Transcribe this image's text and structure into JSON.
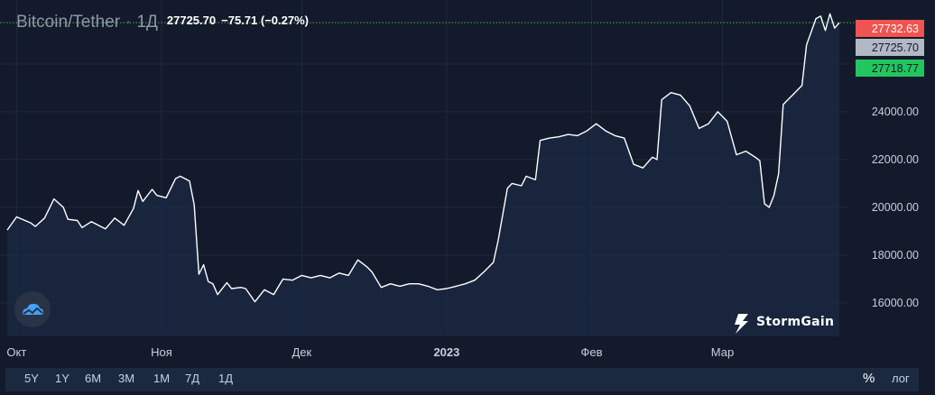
{
  "header": {
    "symbol": "Bitcoin/Tether",
    "separator": "·",
    "timeframe": "1Д",
    "last_price": "27725.70",
    "change": "−75.71 (−0.27%)"
  },
  "price_labels": {
    "high": {
      "text": "27732.63",
      "color": "#f05350"
    },
    "last": {
      "text": "27725.70",
      "color": "#b2b8c4"
    },
    "low": {
      "text": "27718.77",
      "color": "#22c55e"
    }
  },
  "toolbar": {
    "ranges": [
      "5Y",
      "1Y",
      "6M",
      "3M",
      "1M",
      "7Д",
      "1Д"
    ],
    "percent": "%",
    "log": "лог"
  },
  "brand": {
    "name": "StormGain"
  },
  "chart_data": {
    "type": "area",
    "title": "Bitcoin/Tether",
    "xlabel": "",
    "ylabel": "",
    "ylim": [
      14600,
      28600
    ],
    "y_ticks": [
      16000,
      18000,
      20000,
      22000,
      24000,
      26000
    ],
    "y_tick_labels": [
      "16000.00",
      "18000.00",
      "20000.00",
      "22000.00",
      "24000.00",
      "26000.00"
    ],
    "x_ticks": [
      {
        "label": "Окт",
        "date": "2022-10-01"
      },
      {
        "label": "Ноя",
        "date": "2022-11-01"
      },
      {
        "label": "Дек",
        "date": "2022-12-01"
      },
      {
        "label": "2023",
        "date": "2023-01-01"
      },
      {
        "label": "Фев",
        "date": "2023-02-01"
      },
      {
        "label": "Мар",
        "date": "2023-03-01"
      }
    ],
    "grid": true,
    "line_color": "#ffffff",
    "fill_color": "#1b2a44",
    "series": [
      {
        "dates": [
          "2022-09-29",
          "2022-10-01",
          "2022-10-04",
          "2022-10-05",
          "2022-10-07",
          "2022-10-09",
          "2022-10-11",
          "2022-10-12",
          "2022-10-14",
          "2022-10-15",
          "2022-10-17",
          "2022-10-19",
          "2022-10-20",
          "2022-10-22",
          "2022-10-24",
          "2022-10-26",
          "2022-10-27",
          "2022-10-28",
          "2022-10-30",
          "2022-10-31",
          "2022-11-02",
          "2022-11-04",
          "2022-11-05",
          "2022-11-07",
          "2022-11-08",
          "2022-11-09",
          "2022-11-10",
          "2022-11-11",
          "2022-11-12",
          "2022-11-13",
          "2022-11-15",
          "2022-11-16",
          "2022-11-18",
          "2022-11-19",
          "2022-11-21",
          "2022-11-23",
          "2022-11-25",
          "2022-11-27",
          "2022-11-29",
          "2022-12-01",
          "2022-12-03",
          "2022-12-05",
          "2022-12-07",
          "2022-12-09",
          "2022-12-11",
          "2022-12-13",
          "2022-12-15",
          "2022-12-16",
          "2022-12-18",
          "2022-12-20",
          "2022-12-22",
          "2022-12-24",
          "2022-12-26",
          "2022-12-28",
          "2022-12-30",
          "2023-01-01",
          "2023-01-03",
          "2023-01-05",
          "2023-01-07",
          "2023-01-09",
          "2023-01-11",
          "2023-01-12",
          "2023-01-13",
          "2023-01-14",
          "2023-01-15",
          "2023-01-17",
          "2023-01-18",
          "2023-01-20",
          "2023-01-21",
          "2023-01-23",
          "2023-01-25",
          "2023-01-27",
          "2023-01-29",
          "2023-01-31",
          "2023-02-02",
          "2023-02-04",
          "2023-02-06",
          "2023-02-08",
          "2023-02-10",
          "2023-02-12",
          "2023-02-14",
          "2023-02-15",
          "2023-02-16",
          "2023-02-18",
          "2023-02-20",
          "2023-02-22",
          "2023-02-24",
          "2023-02-26",
          "2023-02-28",
          "2023-03-02",
          "2023-03-04",
          "2023-03-06",
          "2023-03-08",
          "2023-03-09",
          "2023-03-10",
          "2023-03-11",
          "2023-03-12",
          "2023-03-13",
          "2023-03-14",
          "2023-03-16",
          "2023-03-18",
          "2023-03-19",
          "2023-03-21",
          "2023-03-22",
          "2023-03-23",
          "2023-03-24",
          "2023-03-25",
          "2023-03-26"
        ],
        "values": [
          19050,
          19600,
          19350,
          19200,
          19550,
          20350,
          20000,
          19500,
          19450,
          19150,
          19400,
          19200,
          19100,
          19550,
          19250,
          19950,
          20700,
          20250,
          20750,
          20500,
          20400,
          21200,
          21300,
          21100,
          20100,
          17200,
          17600,
          16900,
          16800,
          16350,
          16850,
          16600,
          16650,
          16600,
          16050,
          16550,
          16350,
          17000,
          16950,
          17150,
          17050,
          17150,
          17050,
          17250,
          17150,
          17800,
          17500,
          17300,
          16650,
          16800,
          16700,
          16800,
          16800,
          16700,
          16550,
          16600,
          16700,
          16800,
          16950,
          17300,
          17700,
          18600,
          19700,
          20800,
          21000,
          20900,
          21300,
          21150,
          22800,
          22900,
          22950,
          23050,
          23000,
          23200,
          23500,
          23200,
          23000,
          22900,
          21800,
          21650,
          22100,
          22000,
          24500,
          24800,
          24700,
          24250,
          23300,
          23500,
          24000,
          23600,
          22200,
          22350,
          22100,
          21950,
          20150,
          20000,
          20500,
          21400,
          24300,
          24700,
          25100,
          26800,
          27900,
          28000,
          27400,
          28100,
          27500,
          27725.7
        ]
      }
    ]
  }
}
